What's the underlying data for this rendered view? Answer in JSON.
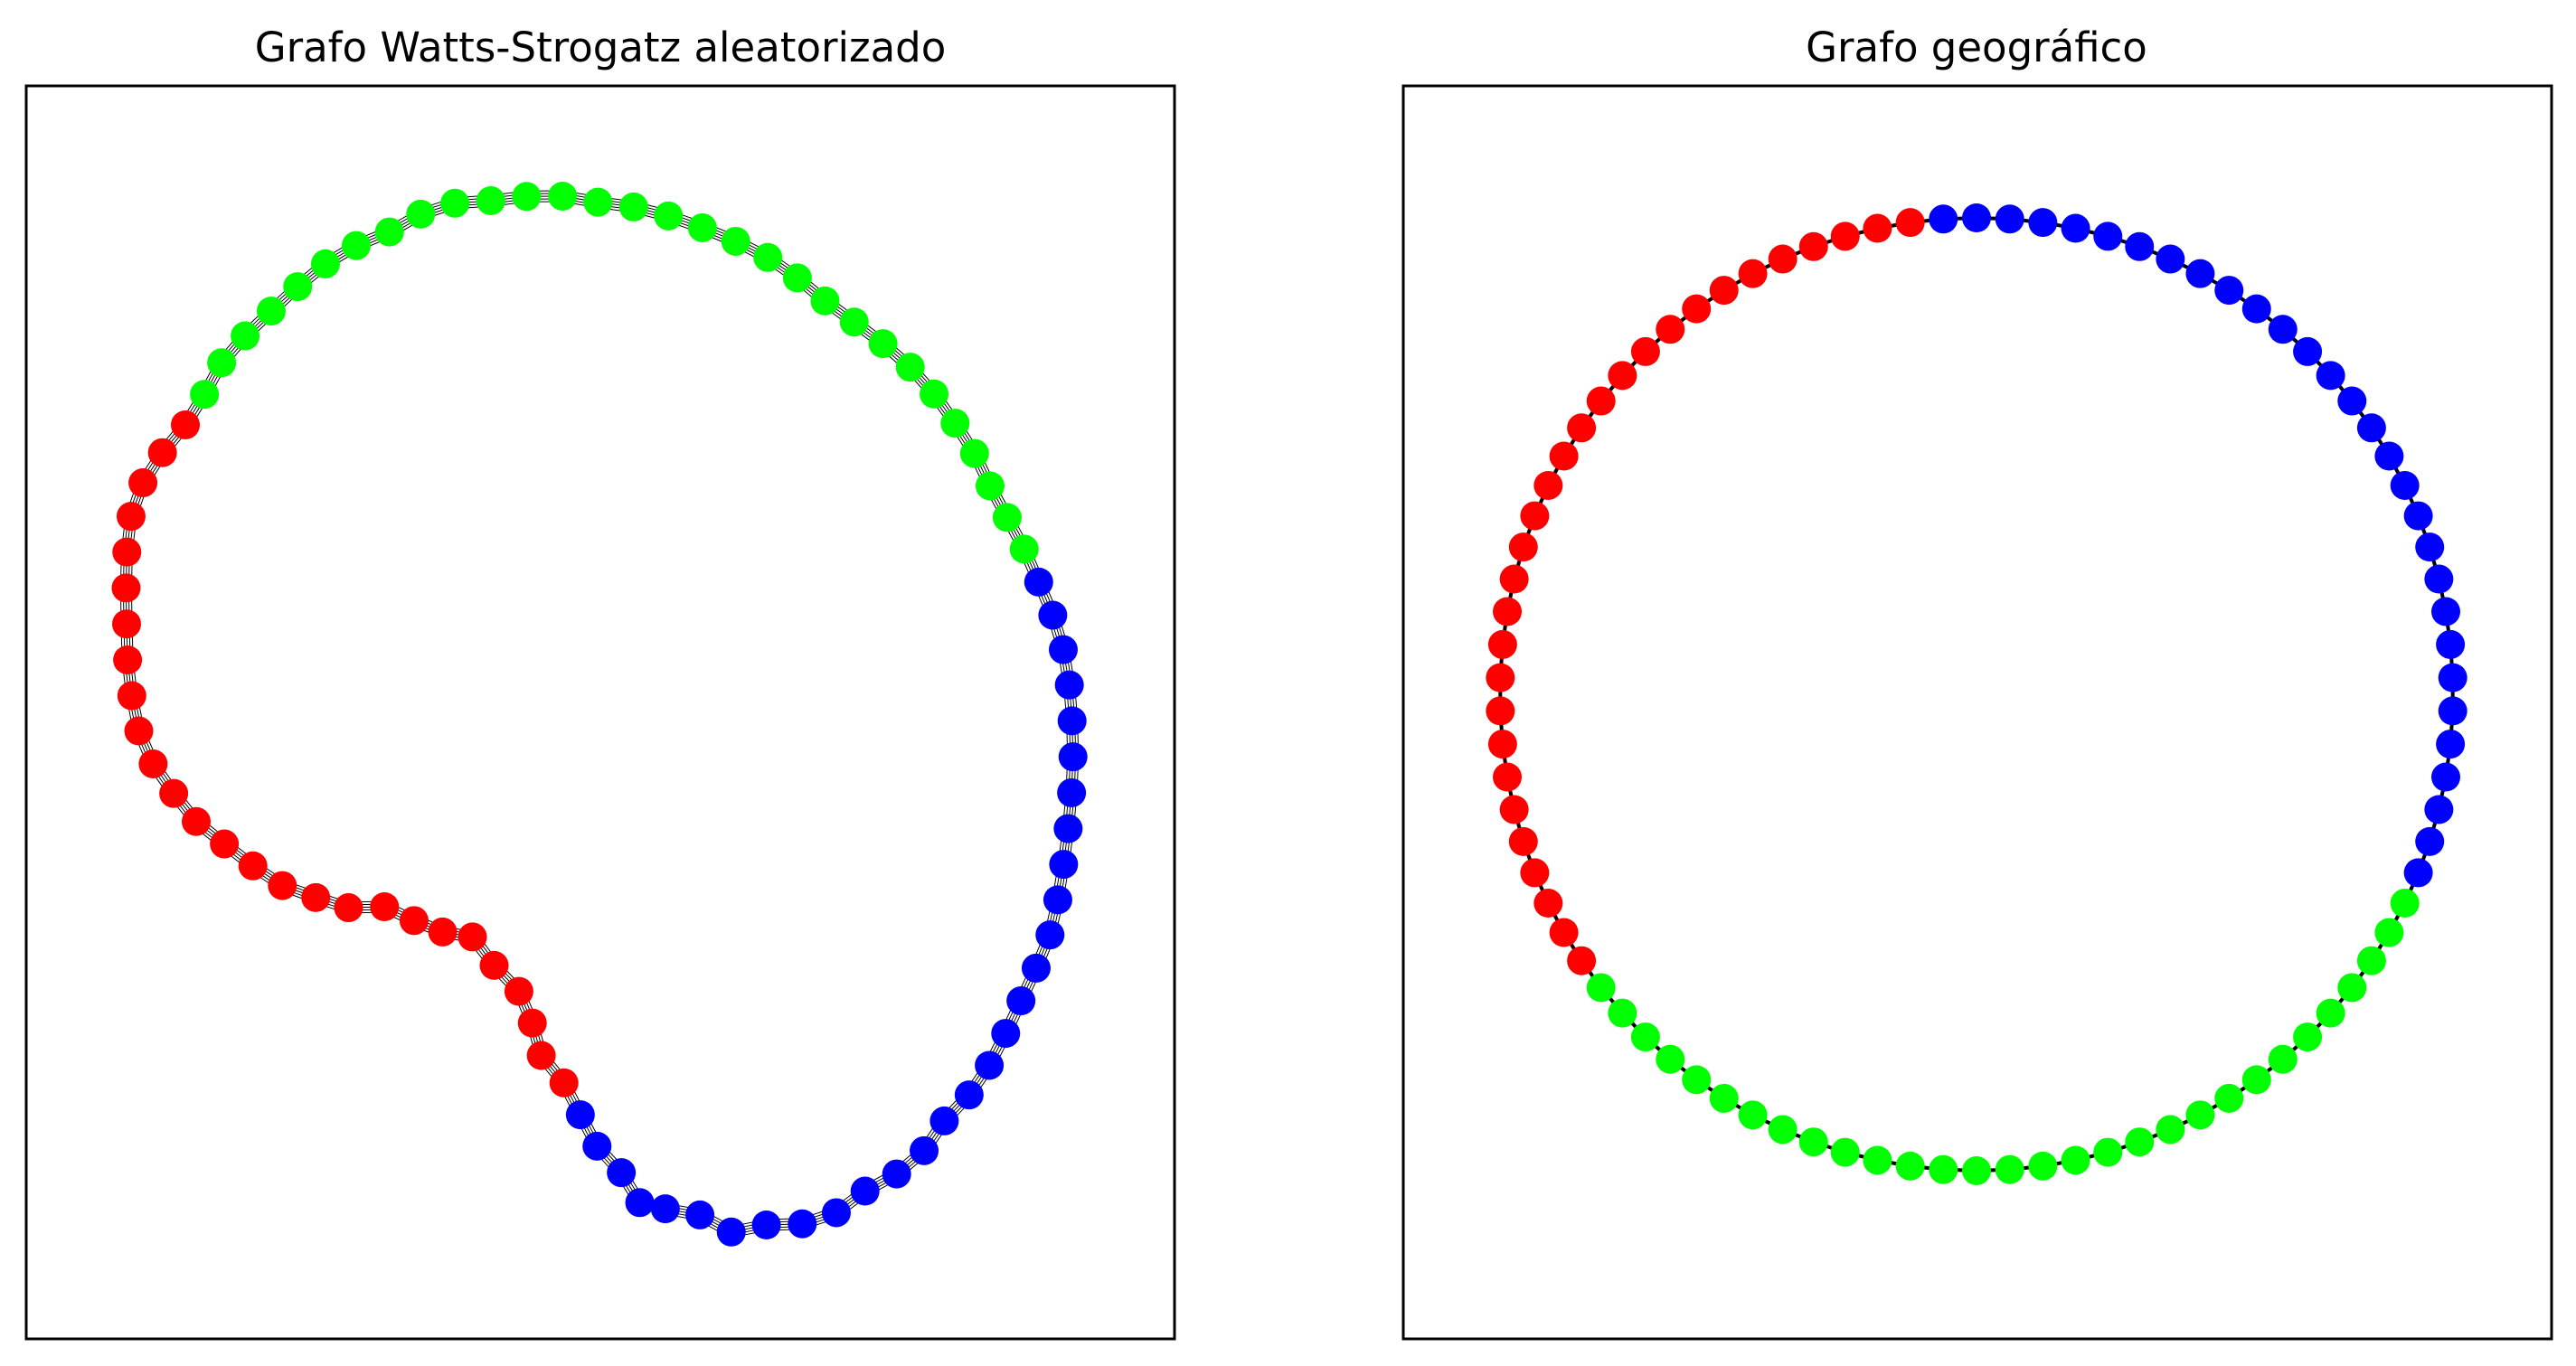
{
  "figure": {
    "panels": [
      {
        "title": "Grafo Watts-Strogatz aleatorizado",
        "layout": "irregular-ring",
        "node_count": 87,
        "edge_style": "multiple thin parallel edges between neighbouring nodes",
        "groups": [
          {
            "color_name": "red",
            "color": "#ff0000",
            "node_count": 27
          },
          {
            "color_name": "green",
            "color": "#00ff00",
            "node_count": 30
          },
          {
            "color_name": "blue",
            "color": "#0000ff",
            "node_count": 30
          }
        ]
      },
      {
        "title": "Grafo geográfico",
        "layout": "circle",
        "node_count": 90,
        "edge_style": "single thick edge between neighbouring nodes",
        "groups": [
          {
            "color_name": "red",
            "color": "#ff0000",
            "node_count": 30
          },
          {
            "color_name": "blue",
            "color": "#0000ff",
            "node_count": 30
          },
          {
            "color_name": "green",
            "color": "#00ff00",
            "node_count": 30
          }
        ]
      }
    ]
  }
}
